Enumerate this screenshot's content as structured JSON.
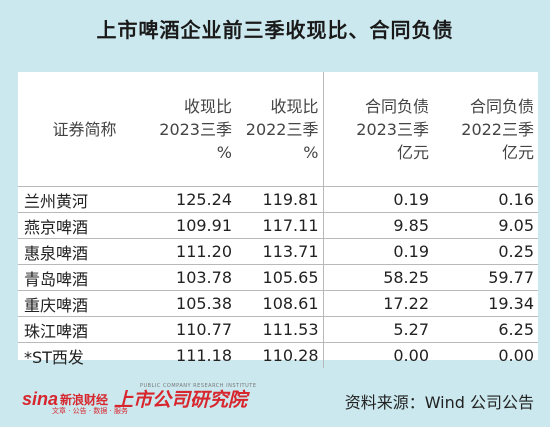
{
  "title": "上市啤酒企业前三季收现比、合同负债",
  "headers": [
    "证券简称",
    "收现比\n2023三季\n%",
    "收现比\n2022三季\n%",
    "合同负债\n2023三季\n亿元",
    "合同负债\n2022三季\n亿元"
  ],
  "rows": [
    [
      "兰州黄河",
      "125.24",
      "119.81",
      "0.19",
      "0.16"
    ],
    [
      "燕京啤酒",
      "109.91",
      "117.11",
      "9.85",
      "9.05"
    ],
    [
      "惠泉啤酒",
      "111.20",
      "113.71",
      "0.19",
      "0.25"
    ],
    [
      "青岛啤酒",
      "103.78",
      "105.65",
      "58.25",
      "59.77"
    ],
    [
      "重庆啤酒",
      "105.38",
      "108.61",
      "17.22",
      "19.34"
    ],
    [
      "珠江啤酒",
      "110.77",
      "111.53",
      "5.27",
      "6.25"
    ],
    [
      "*ST西发",
      "111.18",
      "110.28",
      "0.00",
      "0.00"
    ]
  ],
  "footer": {
    "sina_logo": "sina",
    "sina_name": "新浪财经",
    "sina_sub": "文章 · 公告 · 数据 · 服务",
    "institute_en": "PUBLIC COMPANY RESEARCH INSTITUTE",
    "institute_name": "上市公司研究院",
    "source": "资料来源：Wind 公司公告"
  }
}
